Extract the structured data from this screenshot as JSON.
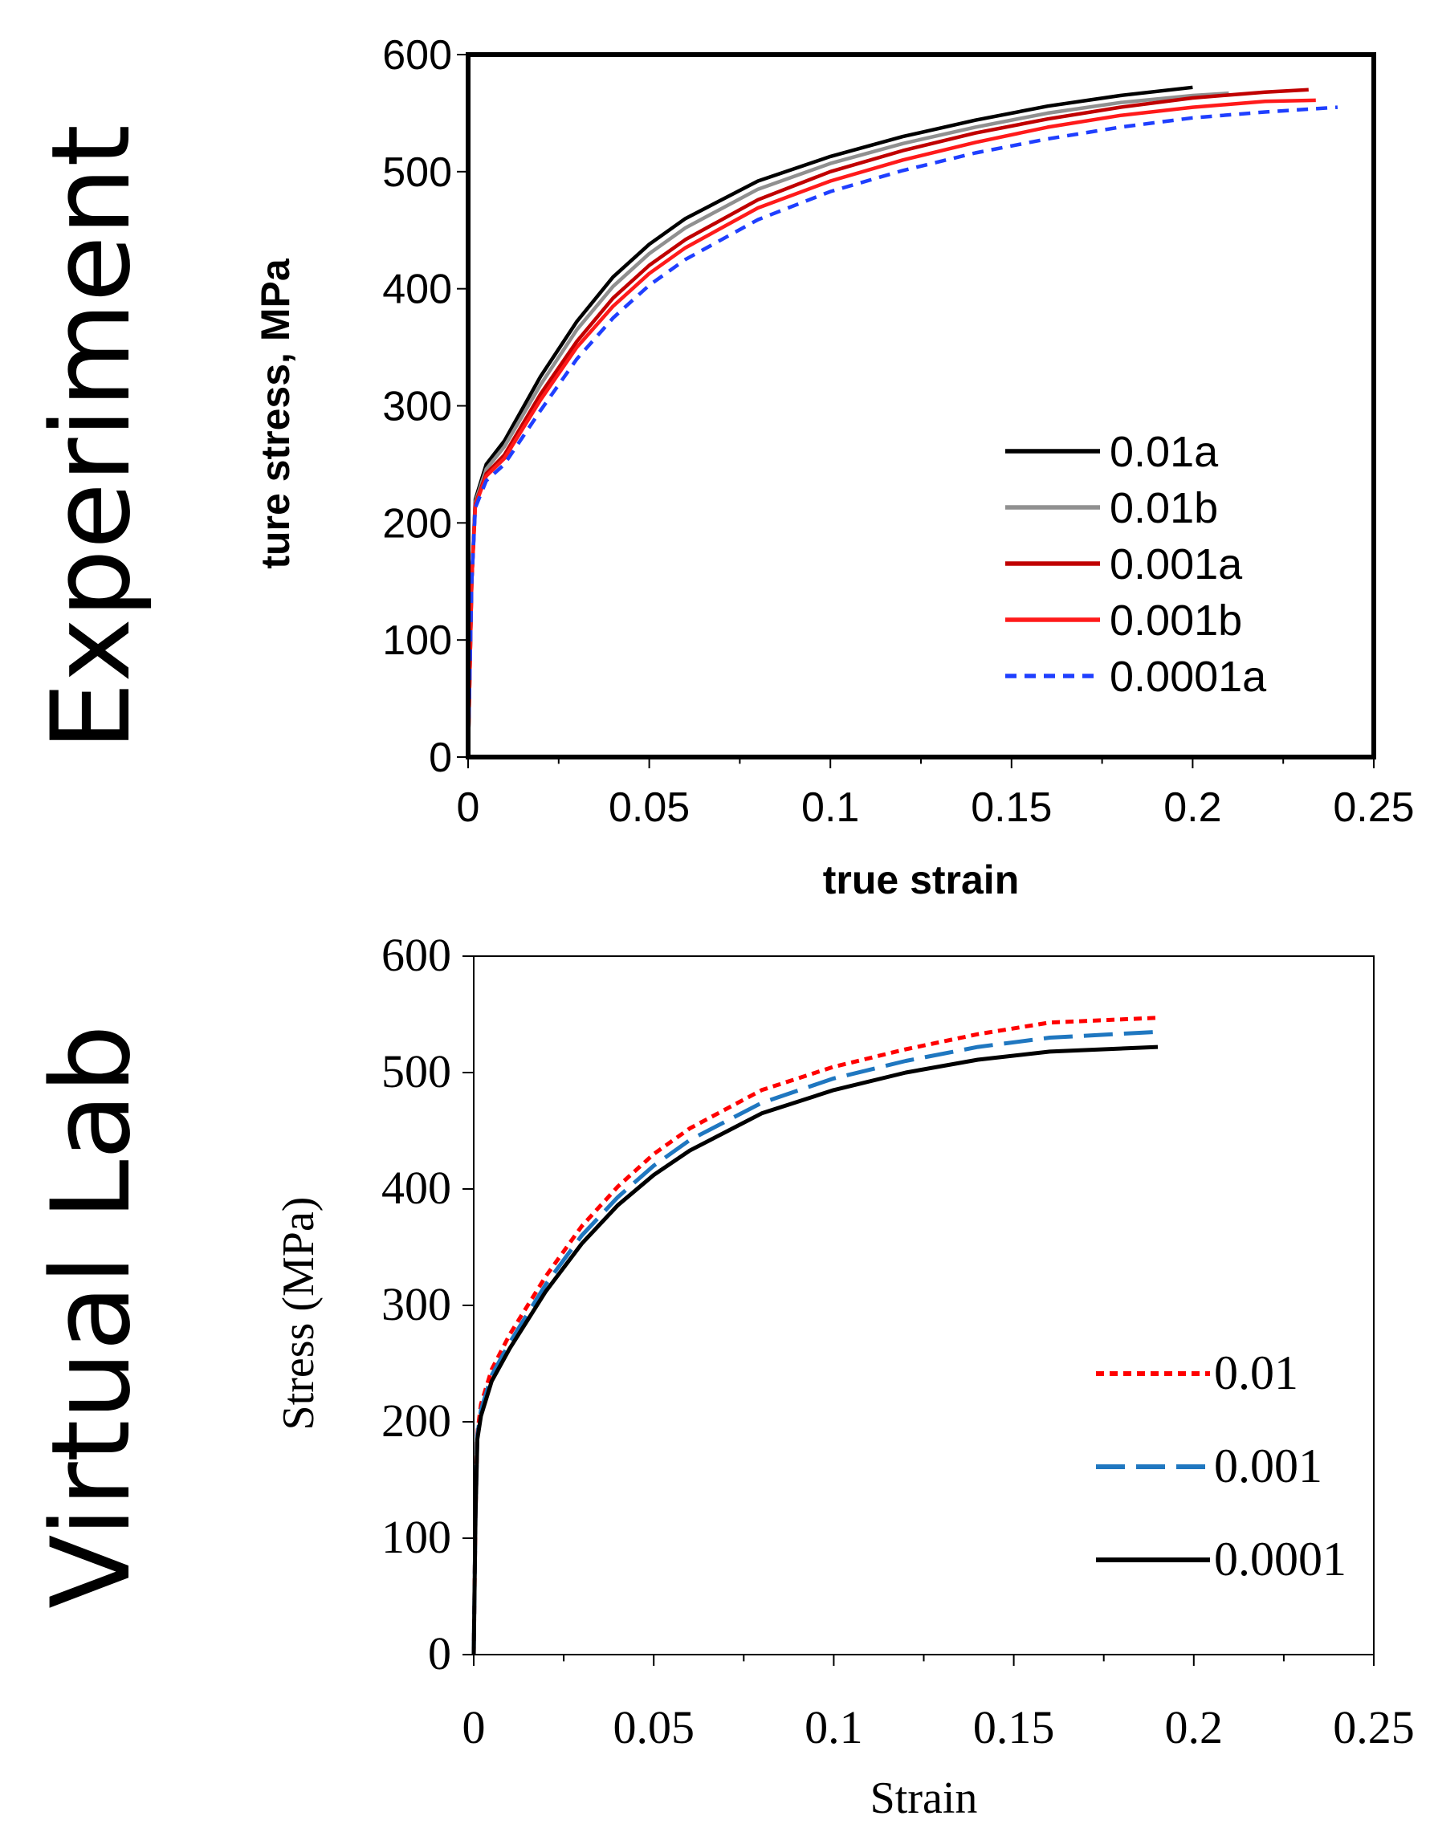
{
  "side_labels": {
    "top": "Experiment",
    "bottom": "Virtual Lab"
  },
  "chart_data": [
    {
      "type": "line",
      "xlabel": "true strain",
      "ylabel": "ture stress, MPa",
      "xlim": [
        0,
        0.25
      ],
      "ylim": [
        0,
        600
      ],
      "xticks": [
        "0",
        "0.05",
        "0.1",
        "0.15",
        "0.2",
        "0.25"
      ],
      "yticks": [
        "0",
        "100",
        "200",
        "300",
        "400",
        "500",
        "600"
      ],
      "grid": false,
      "legend_position": "bottom-right",
      "series": [
        {
          "name": "0.01a",
          "color": "#000000",
          "dash": "solid",
          "x": [
            0,
            0.001,
            0.002,
            0.005,
            0.01,
            0.02,
            0.03,
            0.04,
            0.05,
            0.06,
            0.08,
            0.1,
            0.12,
            0.14,
            0.16,
            0.18,
            0.2
          ],
          "y": [
            0,
            150,
            220,
            250,
            270,
            325,
            372,
            410,
            438,
            460,
            492,
            513,
            530,
            544,
            556,
            565,
            572
          ]
        },
        {
          "name": "0.01b",
          "color": "#909090",
          "dash": "solid",
          "x": [
            0,
            0.001,
            0.002,
            0.005,
            0.01,
            0.02,
            0.03,
            0.04,
            0.05,
            0.06,
            0.08,
            0.1,
            0.12,
            0.14,
            0.16,
            0.18,
            0.2,
            0.21
          ],
          "y": [
            0,
            150,
            218,
            246,
            265,
            318,
            365,
            402,
            430,
            452,
            485,
            507,
            524,
            538,
            550,
            559,
            565,
            567
          ]
        },
        {
          "name": "0.001a",
          "color": "#c00000",
          "dash": "solid",
          "x": [
            0,
            0.001,
            0.002,
            0.005,
            0.01,
            0.02,
            0.03,
            0.04,
            0.05,
            0.06,
            0.08,
            0.1,
            0.12,
            0.14,
            0.16,
            0.18,
            0.2,
            0.22,
            0.232
          ],
          "y": [
            0,
            150,
            216,
            242,
            258,
            310,
            355,
            392,
            420,
            442,
            476,
            500,
            518,
            533,
            545,
            555,
            563,
            568,
            570
          ]
        },
        {
          "name": "0.001b",
          "color": "#ff1a1a",
          "dash": "solid",
          "x": [
            0,
            0.001,
            0.002,
            0.005,
            0.01,
            0.02,
            0.03,
            0.04,
            0.05,
            0.06,
            0.08,
            0.1,
            0.12,
            0.14,
            0.16,
            0.18,
            0.2,
            0.22,
            0.234
          ],
          "y": [
            0,
            150,
            215,
            240,
            255,
            305,
            350,
            385,
            413,
            435,
            469,
            492,
            510,
            525,
            538,
            548,
            555,
            560,
            561
          ]
        },
        {
          "name": "0.0001a",
          "color": "#1f3fff",
          "dash": "dashed",
          "x": [
            0,
            0.001,
            0.002,
            0.005,
            0.01,
            0.02,
            0.03,
            0.04,
            0.05,
            0.06,
            0.08,
            0.1,
            0.12,
            0.14,
            0.16,
            0.18,
            0.2,
            0.22,
            0.24
          ],
          "y": [
            0,
            150,
            213,
            236,
            250,
            296,
            340,
            375,
            403,
            425,
            459,
            483,
            501,
            516,
            528,
            538,
            546,
            551,
            555
          ]
        }
      ]
    },
    {
      "type": "line",
      "xlabel": "Strain",
      "ylabel": "Stress (MPa)",
      "xlim": [
        0,
        0.25
      ],
      "ylim": [
        0,
        600
      ],
      "xticks": [
        "0",
        "0.05",
        "0.1",
        "0.15",
        "0.2",
        "0.25"
      ],
      "yticks": [
        "0",
        "100",
        "200",
        "300",
        "400",
        "500",
        "600"
      ],
      "grid": false,
      "legend_position": "bottom-right",
      "series": [
        {
          "name": "0.01",
          "color": "#ff0000",
          "dash": "dotted",
          "x": [
            0,
            0.0005,
            0.001,
            0.002,
            0.005,
            0.01,
            0.02,
            0.03,
            0.04,
            0.05,
            0.06,
            0.08,
            0.1,
            0.12,
            0.14,
            0.16,
            0.19
          ],
          "y": [
            0,
            120,
            190,
            215,
            245,
            275,
            325,
            368,
            402,
            430,
            452,
            485,
            505,
            520,
            533,
            543,
            547
          ]
        },
        {
          "name": "0.001",
          "color": "#1f77c0",
          "dash": "longdash",
          "x": [
            0,
            0.0005,
            0.001,
            0.002,
            0.005,
            0.01,
            0.02,
            0.03,
            0.04,
            0.05,
            0.06,
            0.08,
            0.1,
            0.12,
            0.14,
            0.16,
            0.19
          ],
          "y": [
            0,
            120,
            188,
            210,
            240,
            268,
            318,
            360,
            393,
            420,
            442,
            474,
            495,
            510,
            522,
            530,
            535
          ]
        },
        {
          "name": "0.0001",
          "color": "#000000",
          "dash": "solid",
          "x": [
            0,
            0.0005,
            0.001,
            0.002,
            0.005,
            0.01,
            0.02,
            0.03,
            0.04,
            0.05,
            0.06,
            0.08,
            0.1,
            0.12,
            0.14,
            0.16,
            0.19
          ],
          "y": [
            0,
            118,
            185,
            205,
            235,
            263,
            312,
            353,
            386,
            412,
            433,
            465,
            485,
            500,
            511,
            518,
            522
          ]
        }
      ]
    }
  ]
}
